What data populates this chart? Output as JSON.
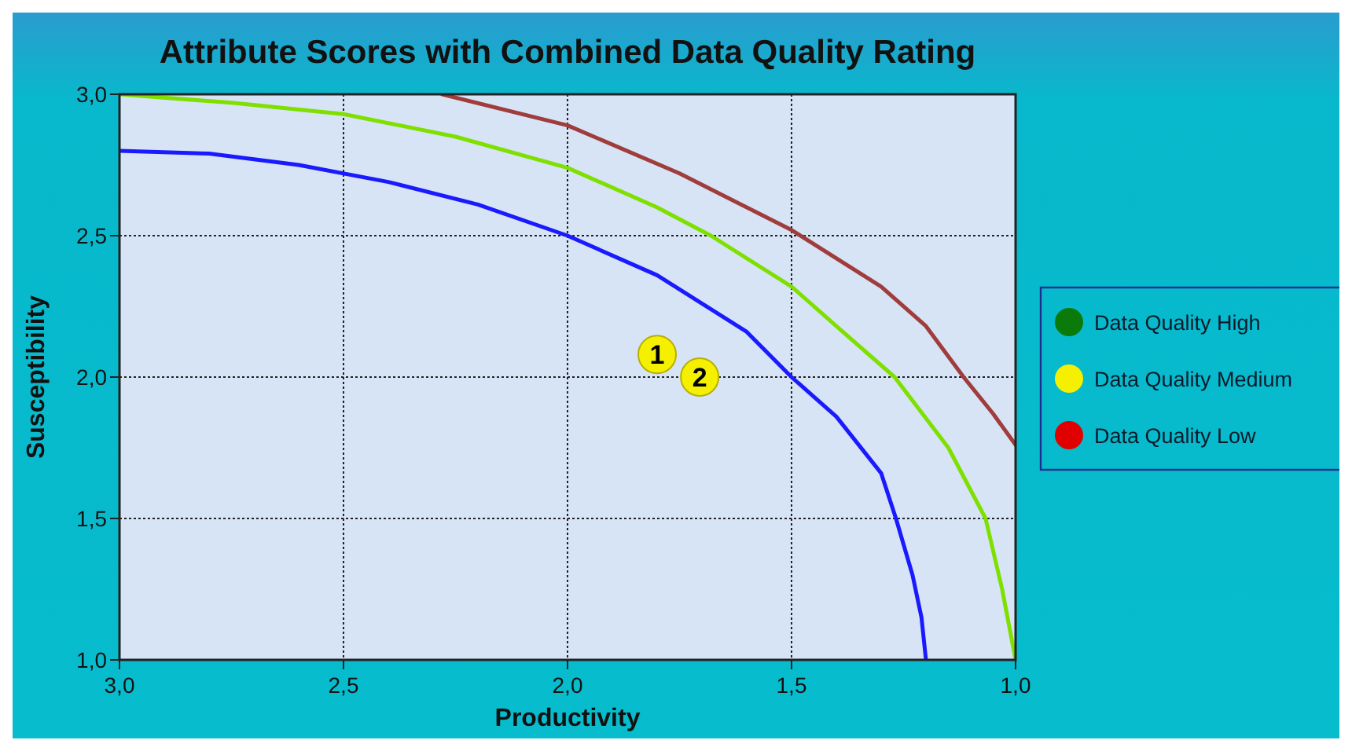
{
  "chart_data": {
    "type": "line",
    "title": "Attribute Scores with Combined Data Quality Rating",
    "xlabel": "Productivity",
    "ylabel": "Susceptibility",
    "xlim": [
      3.0,
      1.0
    ],
    "ylim": [
      1.0,
      3.0
    ],
    "xticks": [
      {
        "value": 3.0,
        "label": "3,0"
      },
      {
        "value": 2.5,
        "label": "2,5"
      },
      {
        "value": 2.0,
        "label": "2,0"
      },
      {
        "value": 1.5,
        "label": "1,5"
      },
      {
        "value": 1.0,
        "label": "1,0"
      }
    ],
    "yticks": [
      {
        "value": 1.0,
        "label": "1,0"
      },
      {
        "value": 1.5,
        "label": "1,5"
      },
      {
        "value": 2.0,
        "label": "2,0"
      },
      {
        "value": 2.5,
        "label": "2,5"
      },
      {
        "value": 3.0,
        "label": "3,0"
      }
    ],
    "grid": true,
    "legend": "right",
    "marker": "none",
    "line_style": "solid",
    "annotations": [
      {
        "text": "1",
        "x": 1.8,
        "y": 2.08
      },
      {
        "text": "2",
        "x": 1.705,
        "y": 2.0
      }
    ],
    "series": [
      {
        "color": "#1a1aff",
        "x": [
          3.0,
          2.8,
          2.6,
          2.4,
          2.2,
          2.0,
          1.8,
          1.6,
          1.5,
          1.4,
          1.3,
          1.267,
          1.23,
          1.21,
          1.2
        ],
        "values": [
          2.8,
          2.79,
          2.75,
          2.69,
          2.61,
          2.5,
          2.36,
          2.16,
          2.0,
          1.86,
          1.66,
          1.5,
          1.3,
          1.15,
          1.0
        ]
      },
      {
        "color": "#7fe000",
        "x": [
          3.0,
          2.75,
          2.5,
          2.25,
          2.0,
          1.8,
          1.68,
          1.5,
          1.4,
          1.27,
          1.15,
          1.067,
          1.03,
          1.0
        ],
        "values": [
          3.0,
          2.97,
          2.93,
          2.85,
          2.74,
          2.6,
          2.5,
          2.32,
          2.18,
          2.0,
          1.75,
          1.5,
          1.25,
          1.0
        ]
      },
      {
        "color": "#a03c3c",
        "x": [
          2.28,
          2.0,
          1.75,
          1.5,
          1.3,
          1.2,
          1.116,
          1.05,
          1.0
        ],
        "values": [
          3.0,
          2.89,
          2.72,
          2.52,
          2.32,
          2.18,
          2.0,
          1.87,
          1.76
        ]
      },
      {
        "type": "scatter",
        "name": "Data Quality High",
        "color": "#0a7a0a",
        "marker": "circle"
      },
      {
        "type": "scatter",
        "name": "Data Quality Medium",
        "color": "#f5f000",
        "marker": "circle",
        "x": [
          1.8,
          1.705
        ],
        "values": [
          2.08,
          2.0
        ]
      },
      {
        "type": "scatter",
        "name": "Data Quality Low",
        "color": "#e00000",
        "marker": "circle"
      }
    ]
  }
}
